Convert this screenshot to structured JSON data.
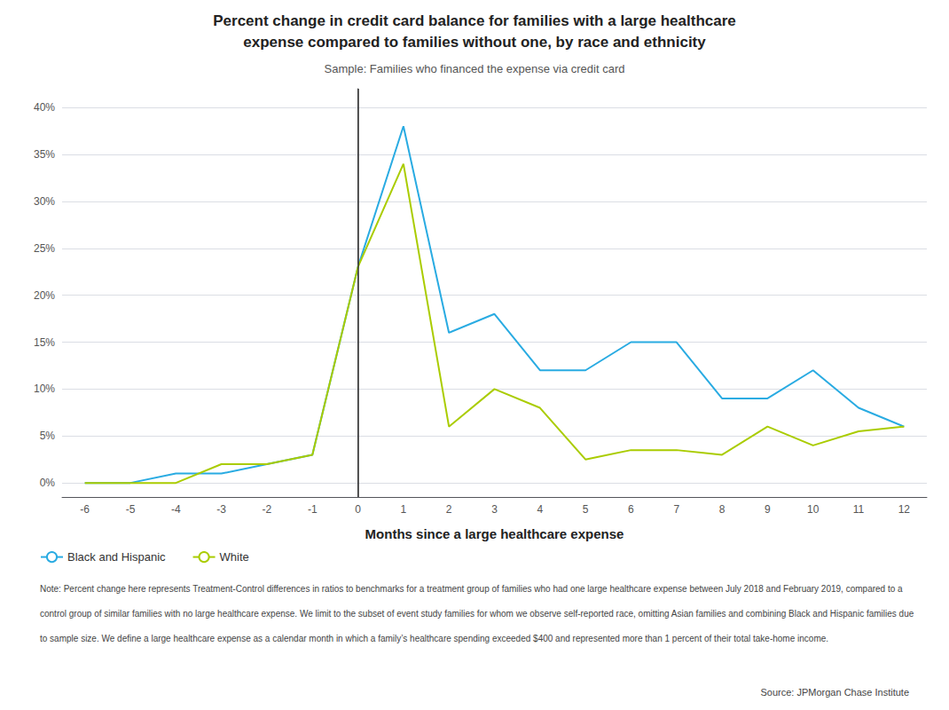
{
  "chart_data": {
    "type": "line",
    "title": "Percent change in credit card balance for families with a large healthcare\nexpense compared to families without one, by race and ethnicity",
    "subtitle": "Sample: Families who financed the expense via credit card",
    "xlabel": "Months since a large healthcare expense",
    "x": [
      -6,
      -5,
      -4,
      -3,
      -2,
      -1,
      0,
      1,
      2,
      3,
      4,
      5,
      6,
      7,
      8,
      9,
      10,
      11,
      12
    ],
    "series": [
      {
        "name": "Black and Hispanic",
        "color": "#29ABE2",
        "values": [
          0,
          0,
          1,
          1,
          2,
          3,
          23,
          38,
          16,
          18,
          12,
          12,
          15,
          15,
          9,
          9,
          12,
          8,
          6
        ]
      },
      {
        "name": "White",
        "color": "#AACC00",
        "values": [
          0,
          0,
          0,
          2,
          2,
          3,
          23,
          34,
          6,
          10,
          8,
          2.5,
          3.5,
          3.5,
          3,
          6,
          4,
          5.5,
          6
        ]
      }
    ],
    "xlim": [
      -6.5,
      12.5
    ],
    "xticks": [
      -6,
      -5,
      -4,
      -3,
      -2,
      -1,
      0,
      1,
      2,
      3,
      4,
      5,
      6,
      7,
      8,
      9,
      10,
      11,
      12
    ],
    "ylim": [
      -1.5,
      42
    ],
    "yticks": [
      {
        "value": 0,
        "label": "0%"
      },
      {
        "value": 5,
        "label": "5%"
      },
      {
        "value": 10,
        "label": "10%"
      },
      {
        "value": 15,
        "label": "15%"
      },
      {
        "value": 20,
        "label": "20%"
      },
      {
        "value": 25,
        "label": "25%"
      },
      {
        "value": 30,
        "label": "30%"
      },
      {
        "value": 35,
        "label": "35%"
      },
      {
        "value": 40,
        "label": "40%"
      }
    ],
    "grid": true,
    "legend": "bottom",
    "vline": {
      "x": 0,
      "color": "#333333"
    },
    "notes": [
      "Note: Percent change here represents Treatment-Control differences in ratios to benchmarks for a treatment group of families who had one large healthcare expense between July 2018 and February 2019, compared to a",
      "control group of similar families with no large healthcare expense. We limit to the subset of event study families for whom we observe self-reported race, omitting Asian families and combining Black and Hispanic families due",
      "to sample size. We define a large healthcare expense as a calendar month in which a family’s healthcare spending exceeded $400 and represented more than 1 percent of their total take-home income."
    ],
    "source": "Source: JPMorgan Chase Institute"
  }
}
